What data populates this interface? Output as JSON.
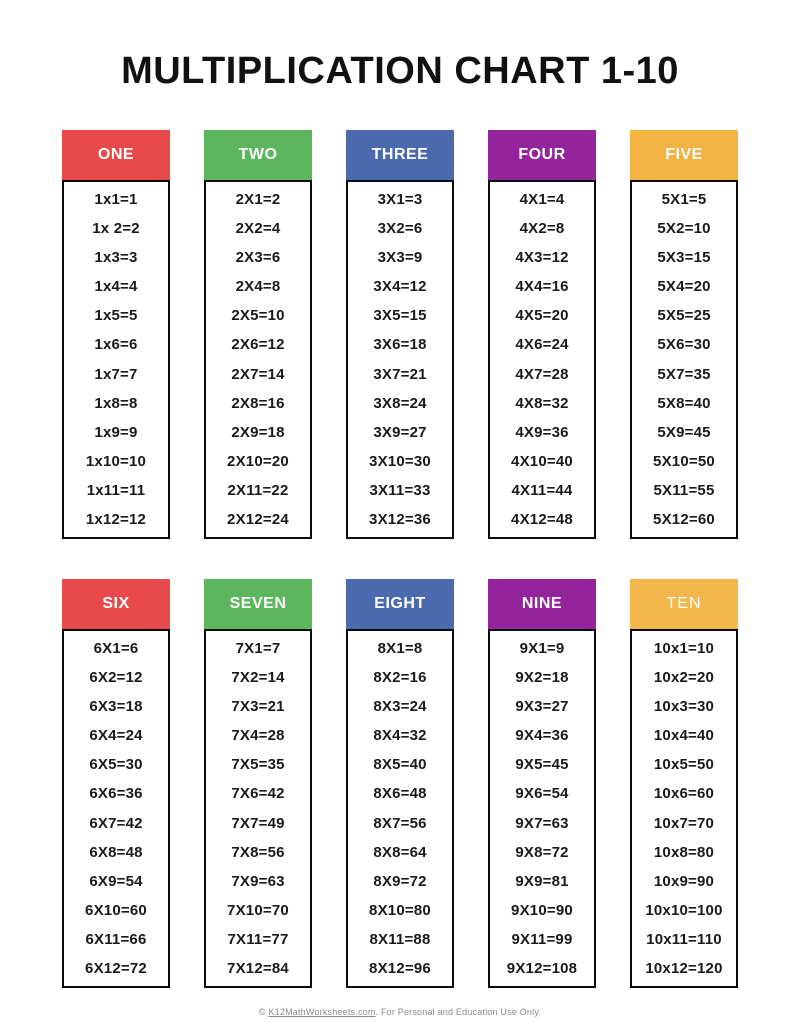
{
  "page": {
    "title": "MULTIPLICATION CHART 1-10"
  },
  "footer": {
    "prefix": "© ",
    "link_text": "K12MathWorksheets.com",
    "suffix": ". For Personal and Education Use Only."
  },
  "colors": {
    "red": "#E8494B",
    "green": "#5BB65D",
    "blue": "#4A69AE",
    "purple": "#93249C",
    "yellow": "#F3B342",
    "border": "#0A0A0A",
    "header_text": "#FFFFFF",
    "fact_text": "#1A1A1A"
  },
  "chart": {
    "columns": [
      {
        "label": "ONE",
        "color": "#E8494B",
        "header_weight": "bold",
        "facts": [
          "1x1=1",
          "1x 2=2",
          "1x3=3",
          "1x4=4",
          "1x5=5",
          "1x6=6",
          "1x7=7",
          "1x8=8",
          "1x9=9",
          "1x10=10",
          "1x11=11",
          "1x12=12"
        ]
      },
      {
        "label": "TWO",
        "color": "#5BB65D",
        "header_weight": "bold",
        "facts": [
          "2X1=2",
          "2X2=4",
          "2X3=6",
          "2X4=8",
          "2X5=10",
          "2X6=12",
          "2X7=14",
          "2X8=16",
          "2X9=18",
          "2X10=20",
          "2X11=22",
          "2X12=24"
        ]
      },
      {
        "label": "THREE",
        "color": "#4A69AE",
        "header_weight": "bold",
        "facts": [
          "3X1=3",
          "3X2=6",
          "3X3=9",
          "3X4=12",
          "3X5=15",
          "3X6=18",
          "3X7=21",
          "3X8=24",
          "3X9=27",
          "3X10=30",
          "3X11=33",
          "3X12=36"
        ]
      },
      {
        "label": "FOUR",
        "color": "#93249C",
        "header_weight": "bold",
        "facts": [
          "4X1=4",
          "4X2=8",
          "4X3=12",
          "4X4=16",
          "4X5=20",
          "4X6=24",
          "4X7=28",
          "4X8=32",
          "4X9=36",
          "4X10=40",
          "4X11=44",
          "4X12=48"
        ]
      },
      {
        "label": "FIVE",
        "color": "#F3B342",
        "header_weight": "bold",
        "facts": [
          "5X1=5",
          "5X2=10",
          "5X3=15",
          "5X4=20",
          "5X5=25",
          "5X6=30",
          "5X7=35",
          "5X8=40",
          "5X9=45",
          "5X10=50",
          "5X11=55",
          "5X12=60"
        ]
      },
      {
        "label": "SIX",
        "color": "#E8494B",
        "header_weight": "bold",
        "facts": [
          "6X1=6",
          "6X2=12",
          "6X3=18",
          "6X4=24",
          "6X5=30",
          "6X6=36",
          "6X7=42",
          "6X8=48",
          "6X9=54",
          "6X10=60",
          "6X11=66",
          "6X12=72"
        ]
      },
      {
        "label": "SEVEN",
        "color": "#5BB65D",
        "header_weight": "bold",
        "facts": [
          "7X1=7",
          "7X2=14",
          "7X3=21",
          "7X4=28",
          "7X5=35",
          "7X6=42",
          "7X7=49",
          "7X8=56",
          "7X9=63",
          "7X10=70",
          "7X11=77",
          "7X12=84"
        ]
      },
      {
        "label": "EIGHT",
        "color": "#4A69AE",
        "header_weight": "bold",
        "facts": [
          "8X1=8",
          "8X2=16",
          "8X3=24",
          "8X4=32",
          "8X5=40",
          "8X6=48",
          "8X7=56",
          "8X8=64",
          "8X9=72",
          "8X10=80",
          "8X11=88",
          "8X12=96"
        ]
      },
      {
        "label": "NINE",
        "color": "#93249C",
        "header_weight": "bold",
        "facts": [
          "9X1=9",
          "9X2=18",
          "9X3=27",
          "9X4=36",
          "9X5=45",
          "9X6=54",
          "9X7=63",
          "9X8=72",
          "9X9=81",
          "9X10=90",
          "9X11=99",
          "9X12=108"
        ]
      },
      {
        "label": "TEN",
        "color": "#F3B342",
        "header_weight": "light",
        "facts": [
          "10x1=10",
          "10x2=20",
          "10x3=30",
          "10x4=40",
          "10x5=50",
          "10x6=60",
          "10x7=70",
          "10x8=80",
          "10x9=90",
          "10x10=100",
          "10x11=110",
          "10x12=120"
        ]
      }
    ]
  }
}
